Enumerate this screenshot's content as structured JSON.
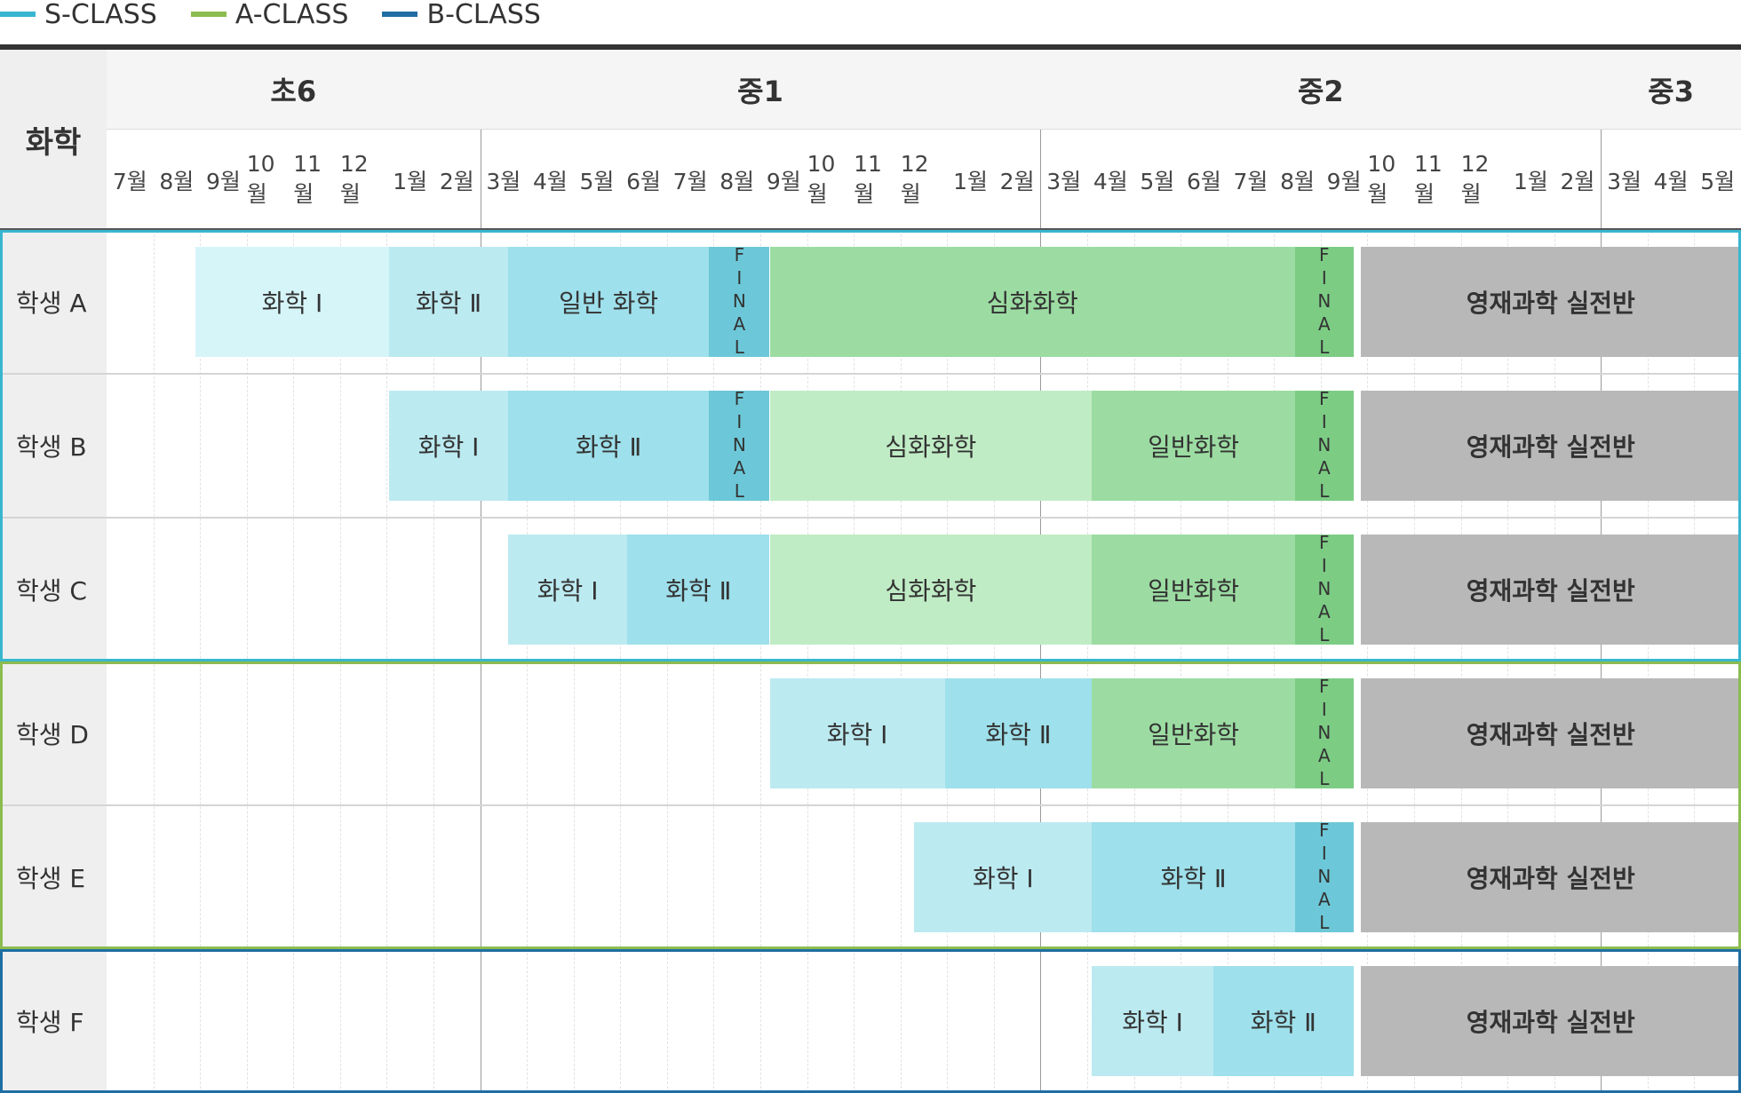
{
  "legend": [
    {
      "label": "S-CLASS",
      "color": "#39b6cf"
    },
    {
      "label": "A-CLASS",
      "color": "#8cbc4f"
    },
    {
      "label": "B-CLASS",
      "color": "#1f6ea3"
    }
  ],
  "corner_label": "화학",
  "grades": [
    {
      "label": "초6",
      "start": 0,
      "span": 8
    },
    {
      "label": "중1",
      "start": 8,
      "span": 12
    },
    {
      "label": "중2",
      "start": 20,
      "span": 12
    },
    {
      "label": "중3",
      "start": 32,
      "span": 3
    }
  ],
  "months": [
    "7월",
    "8월",
    "9월",
    "10월",
    "11월",
    "12월",
    "1월",
    "2월",
    "3월",
    "4월",
    "5월",
    "6월",
    "7월",
    "8월",
    "9월",
    "10월",
    "11월",
    "12월",
    "1월",
    "2월",
    "3월",
    "4월",
    "5월",
    "6월",
    "7월",
    "8월",
    "9월",
    "10월",
    "11월",
    "12월",
    "1월",
    "2월",
    "3월",
    "4월",
    "5월"
  ],
  "groups": [
    {
      "class": "S-CLASS",
      "color": "#39b6cf",
      "first_row": 0,
      "row_count": 3
    },
    {
      "class": "A-CLASS",
      "color": "#8cbc4f",
      "first_row": 3,
      "row_count": 2
    },
    {
      "class": "B-CLASS",
      "color": "#1f6ea3",
      "first_row": 5,
      "row_count": 1
    }
  ],
  "palette": {
    "s1": "#d6f5f9",
    "s2": "#bceaf1",
    "s3": "#9ee0eb",
    "final_s": "#6cc8d8",
    "a1": "#c0ecc5",
    "a2": "#9cdca2",
    "final_a": "#7ccc84",
    "gray": "#b8b8b8"
  },
  "students": [
    {
      "label": "학생 A",
      "bars": [
        {
          "text": "화학 Ⅰ",
          "start": 1.9,
          "end": 6.05,
          "color": "s1"
        },
        {
          "text": "화학 Ⅱ",
          "start": 6.05,
          "end": 8.6,
          "color": "s2"
        },
        {
          "text": "일반 화학",
          "start": 8.6,
          "end": 12.9,
          "color": "s3"
        },
        {
          "text": "FINAL",
          "start": 12.9,
          "end": 14.2,
          "color": "final_s",
          "vertical": true
        },
        {
          "text": "심화화학",
          "start": 14.2,
          "end": 25.45,
          "color": "a2"
        },
        {
          "text": "FINAL",
          "start": 25.45,
          "end": 26.7,
          "color": "final_a",
          "vertical": true
        },
        {
          "text": "영재과학 실전반",
          "start": 26.85,
          "end": 35,
          "color": "gray",
          "bold": true
        }
      ]
    },
    {
      "label": "학생 B",
      "bars": [
        {
          "text": "화학 Ⅰ",
          "start": 6.05,
          "end": 8.6,
          "color": "s2"
        },
        {
          "text": "화학 Ⅱ",
          "start": 8.6,
          "end": 12.9,
          "color": "s3"
        },
        {
          "text": "FINAL",
          "start": 12.9,
          "end": 14.2,
          "color": "final_s",
          "vertical": true
        },
        {
          "text": "심화화학",
          "start": 14.2,
          "end": 21.1,
          "color": "a1"
        },
        {
          "text": "일반화학",
          "start": 21.1,
          "end": 25.45,
          "color": "a2"
        },
        {
          "text": "FINAL",
          "start": 25.45,
          "end": 26.7,
          "color": "final_a",
          "vertical": true
        },
        {
          "text": "영재과학 실전반",
          "start": 26.85,
          "end": 35,
          "color": "gray",
          "bold": true
        }
      ]
    },
    {
      "label": "학생 C",
      "bars": [
        {
          "text": "화학 Ⅰ",
          "start": 8.6,
          "end": 11.15,
          "color": "s2"
        },
        {
          "text": "화학 Ⅱ",
          "start": 11.15,
          "end": 14.2,
          "color": "s3"
        },
        {
          "text": "심화화학",
          "start": 14.2,
          "end": 21.1,
          "color": "a1"
        },
        {
          "text": "일반화학",
          "start": 21.1,
          "end": 25.45,
          "color": "a2"
        },
        {
          "text": "FINAL",
          "start": 25.45,
          "end": 26.7,
          "color": "final_a",
          "vertical": true
        },
        {
          "text": "영재과학 실전반",
          "start": 26.85,
          "end": 35,
          "color": "gray",
          "bold": true
        }
      ]
    },
    {
      "label": "학생 D",
      "bars": [
        {
          "text": "화학 Ⅰ",
          "start": 14.2,
          "end": 17.95,
          "color": "s2"
        },
        {
          "text": "화학 Ⅱ",
          "start": 17.95,
          "end": 21.1,
          "color": "s3"
        },
        {
          "text": "일반화학",
          "start": 21.1,
          "end": 25.45,
          "color": "a2"
        },
        {
          "text": "FINAL",
          "start": 25.45,
          "end": 26.7,
          "color": "final_a",
          "vertical": true
        },
        {
          "text": "영재과학 실전반",
          "start": 26.85,
          "end": 35,
          "color": "gray",
          "bold": true
        }
      ]
    },
    {
      "label": "학생 E",
      "bars": [
        {
          "text": "화학 Ⅰ",
          "start": 17.3,
          "end": 21.1,
          "color": "s2"
        },
        {
          "text": "화학 Ⅱ",
          "start": 21.1,
          "end": 25.45,
          "color": "s3"
        },
        {
          "text": "FINAL",
          "start": 25.45,
          "end": 26.7,
          "color": "final_s",
          "vertical": true
        },
        {
          "text": "영재과학 실전반",
          "start": 26.85,
          "end": 35,
          "color": "gray",
          "bold": true
        }
      ]
    },
    {
      "label": "학생 F",
      "bars": [
        {
          "text": "화학 Ⅰ",
          "start": 21.1,
          "end": 23.7,
          "color": "s2"
        },
        {
          "text": "화학 Ⅱ",
          "start": 23.7,
          "end": 26.7,
          "color": "s3"
        },
        {
          "text": "영재과학 실전반",
          "start": 26.85,
          "end": 35,
          "color": "gray",
          "bold": true
        }
      ]
    }
  ]
}
